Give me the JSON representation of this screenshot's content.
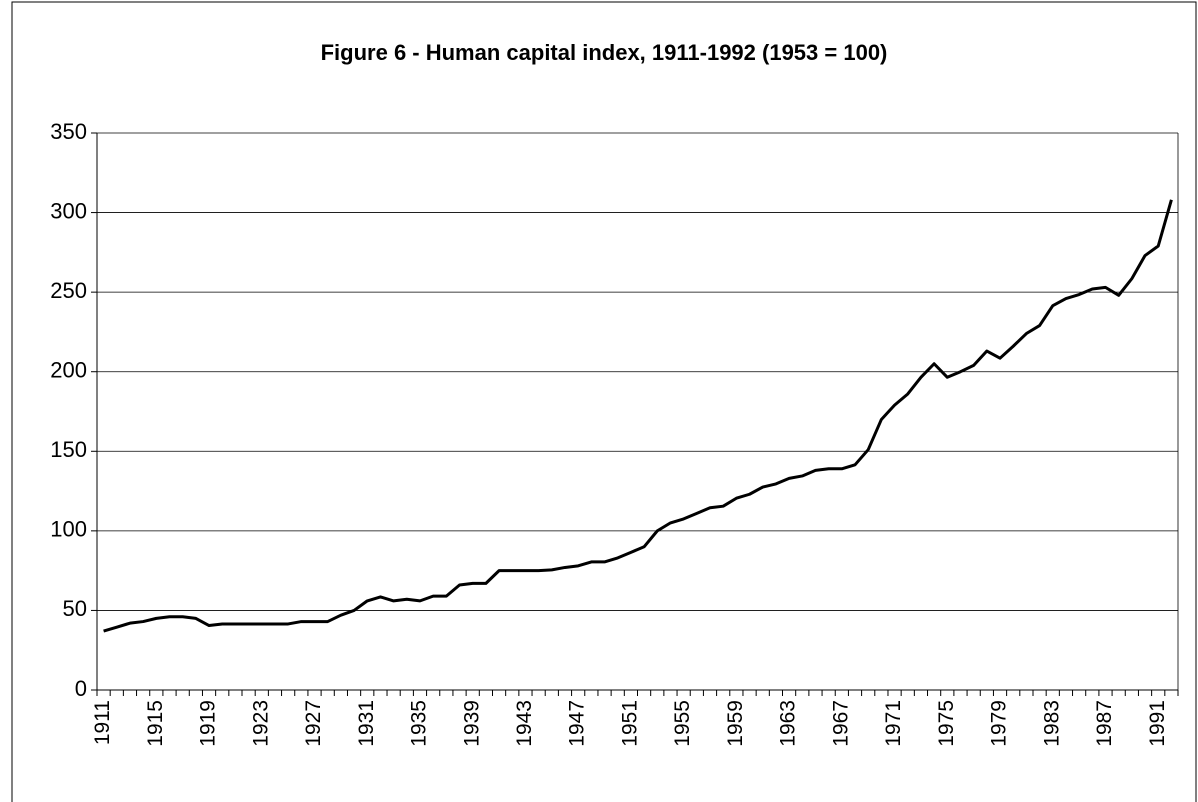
{
  "chart_data": {
    "type": "line",
    "title": "Figure 6 - Human capital index, 1911-1992 (1953 = 100)",
    "categories": [
      "1911",
      null,
      null,
      null,
      "1915",
      null,
      null,
      null,
      "1919",
      null,
      null,
      null,
      "1923",
      null,
      null,
      null,
      "1927",
      null,
      null,
      null,
      "1931",
      null,
      null,
      null,
      "1935",
      null,
      null,
      null,
      "1939",
      null,
      null,
      null,
      "1943",
      null,
      null,
      null,
      "1947",
      null,
      null,
      null,
      "1951",
      null,
      null,
      null,
      "1955",
      null,
      null,
      null,
      "1959",
      null,
      null,
      null,
      "1963",
      null,
      null,
      null,
      "1967",
      null,
      null,
      null,
      "1971",
      null,
      null,
      null,
      "1975",
      null,
      null,
      null,
      "1979",
      null,
      null,
      null,
      "1983",
      null,
      null,
      null,
      "1987",
      null,
      null,
      null,
      "1991",
      null
    ],
    "values": [
      37,
      39.5,
      42,
      43,
      45,
      46,
      46,
      45,
      40.5,
      41.5,
      41.5,
      41.5,
      41.5,
      41.5,
      41.5,
      43,
      43,
      43,
      47,
      50,
      56,
      58.5,
      56,
      57,
      56,
      59,
      59,
      66,
      67,
      67,
      75,
      75,
      75,
      75,
      75.5,
      77,
      78,
      80.5,
      80.5,
      83,
      86.5,
      90,
      100,
      105,
      107.5,
      111,
      114.5,
      115.5,
      120.5,
      123,
      127.5,
      129.5,
      133,
      134.5,
      138,
      139,
      139,
      141.5,
      151,
      170,
      179,
      186,
      196.5,
      205,
      196.5,
      200,
      204,
      213,
      208.5,
      216,
      224,
      229,
      241.5,
      246,
      248.5,
      252,
      253,
      248,
      258.5,
      273,
      279,
      308
    ],
    "color": "#000000",
    "ylim": [
      0,
      350
    ],
    "yticks": [
      0,
      50,
      100,
      150,
      200,
      250,
      300,
      350
    ],
    "grid": true
  }
}
